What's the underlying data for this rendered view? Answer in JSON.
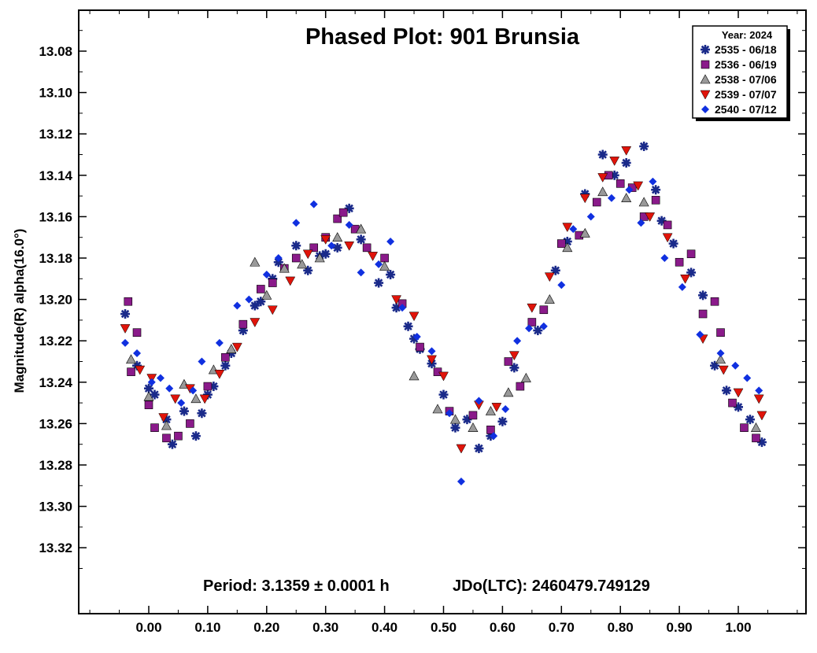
{
  "chart_data": {
    "type": "scatter",
    "title": "Phased Plot: 901 Brunsia",
    "xlabel": "",
    "ylabel": "Magnitude(R) alpha(16.0°)",
    "xlim": [
      -0.12,
      1.12
    ],
    "ylim": [
      13.34,
      13.06
    ],
    "y_inverted": true,
    "x_ticks": [
      "0.00",
      "0.10",
      "0.20",
      "0.30",
      "0.40",
      "0.50",
      "0.60",
      "0.70",
      "0.80",
      "0.90",
      "1.00"
    ],
    "y_ticks": [
      "13.08",
      "13.10",
      "13.12",
      "13.14",
      "13.16",
      "13.18",
      "13.20",
      "13.22",
      "13.24",
      "13.26",
      "13.28",
      "13.30",
      "13.32"
    ],
    "legend": {
      "title": "Year: 2024",
      "placement": "top-right"
    },
    "footer": {
      "period": "Period: 3.1359 ± 0.0001 h",
      "jd": "JDo(LTC): 2460479.749129"
    },
    "series": [
      {
        "name": "2535 - 06/18",
        "marker": "asterisk",
        "color": "#1a2a8a",
        "x": [
          -0.04,
          -0.02,
          0.0,
          0.01,
          0.03,
          0.04,
          0.06,
          0.08,
          0.09,
          0.1,
          0.11,
          0.13,
          0.14,
          0.16,
          0.18,
          0.19,
          0.21,
          0.22,
          0.25,
          0.27,
          0.29,
          0.3,
          0.32,
          0.34,
          0.36,
          0.39,
          0.41,
          0.42,
          0.44,
          0.45,
          0.46,
          0.48,
          0.5,
          0.52,
          0.54,
          0.56,
          0.58,
          0.6,
          0.96,
          0.98,
          1.0,
          1.02,
          1.04,
          0.62,
          0.66,
          0.69,
          0.71,
          0.74,
          0.77,
          0.79,
          0.81,
          0.84,
          0.86,
          0.87,
          0.89,
          0.92,
          0.94
        ],
        "y": [
          13.207,
          13.232,
          13.243,
          13.246,
          13.258,
          13.27,
          13.254,
          13.266,
          13.255,
          13.246,
          13.242,
          13.232,
          13.226,
          13.215,
          13.203,
          13.201,
          13.19,
          13.182,
          13.174,
          13.186,
          13.179,
          13.178,
          13.175,
          13.156,
          13.171,
          13.192,
          13.188,
          13.204,
          13.213,
          13.219,
          13.224,
          13.231,
          13.246,
          13.262,
          13.258,
          13.272,
          13.266,
          13.259,
          13.232,
          13.244,
          13.252,
          13.258,
          13.269,
          13.233,
          13.215,
          13.186,
          13.172,
          13.149,
          13.13,
          13.14,
          13.134,
          13.126,
          13.147,
          13.162,
          13.173,
          13.187,
          13.198
        ]
      },
      {
        "name": "2536 - 06/19",
        "marker": "square",
        "color": "#8a1a8a",
        "x": [
          -0.035,
          -0.03,
          -0.02,
          0.0,
          0.01,
          0.03,
          0.05,
          0.07,
          0.1,
          0.13,
          0.16,
          0.19,
          0.21,
          0.23,
          0.25,
          0.28,
          0.3,
          0.32,
          0.33,
          0.35,
          0.37,
          0.4,
          0.43,
          0.46,
          0.49,
          0.51,
          0.55,
          0.58,
          0.61,
          0.63,
          0.65,
          0.67,
          0.7,
          0.73,
          0.76,
          0.78,
          0.8,
          0.82,
          0.84,
          0.86,
          0.88,
          0.9,
          0.92,
          0.94,
          0.96,
          0.97,
          0.99,
          1.01,
          1.03
        ],
        "y": [
          13.201,
          13.235,
          13.216,
          13.251,
          13.262,
          13.267,
          13.266,
          13.26,
          13.242,
          13.228,
          13.212,
          13.195,
          13.192,
          13.185,
          13.18,
          13.175,
          13.17,
          13.161,
          13.158,
          13.166,
          13.175,
          13.18,
          13.202,
          13.223,
          13.235,
          13.254,
          13.256,
          13.263,
          13.23,
          13.242,
          13.211,
          13.205,
          13.173,
          13.169,
          13.153,
          13.14,
          13.144,
          13.146,
          13.16,
          13.152,
          13.164,
          13.182,
          13.178,
          13.207,
          13.201,
          13.216,
          13.25,
          13.262,
          13.267
        ]
      },
      {
        "name": "2538 - 07/06",
        "marker": "triangle-up",
        "color": "#999999",
        "x": [
          -0.03,
          0.0,
          0.03,
          0.06,
          0.08,
          0.11,
          0.14,
          0.18,
          0.2,
          0.23,
          0.26,
          0.29,
          0.32,
          0.36,
          0.4,
          0.45,
          0.49,
          0.52,
          0.55,
          0.58,
          0.61,
          0.64,
          0.68,
          0.71,
          0.74,
          0.77,
          0.81,
          0.84,
          0.97,
          1.03
        ],
        "y": [
          13.229,
          13.247,
          13.261,
          13.241,
          13.248,
          13.234,
          13.224,
          13.182,
          13.198,
          13.185,
          13.183,
          13.18,
          13.17,
          13.166,
          13.184,
          13.237,
          13.253,
          13.258,
          13.262,
          13.254,
          13.245,
          13.238,
          13.2,
          13.175,
          13.168,
          13.148,
          13.151,
          13.153,
          13.229,
          13.262
        ]
      },
      {
        "name": "2539 - 07/07",
        "marker": "triangle-down",
        "color": "#e0140a",
        "x": [
          -0.04,
          -0.015,
          0.005,
          0.025,
          0.045,
          0.07,
          0.095,
          0.12,
          0.15,
          0.18,
          0.21,
          0.24,
          0.27,
          0.3,
          0.34,
          0.38,
          0.42,
          0.45,
          0.48,
          0.5,
          0.53,
          0.56,
          0.59,
          0.62,
          0.65,
          0.68,
          0.71,
          0.74,
          0.77,
          0.79,
          0.81,
          0.83,
          0.85,
          0.88,
          0.91,
          0.94,
          0.975,
          1.0,
          1.035,
          1.04
        ],
        "y": [
          13.214,
          13.234,
          13.238,
          13.257,
          13.248,
          13.243,
          13.248,
          13.236,
          13.223,
          13.211,
          13.205,
          13.191,
          13.178,
          13.171,
          13.174,
          13.179,
          13.2,
          13.208,
          13.229,
          13.237,
          13.272,
          13.251,
          13.252,
          13.227,
          13.204,
          13.189,
          13.165,
          13.151,
          13.141,
          13.133,
          13.128,
          13.145,
          13.16,
          13.17,
          13.19,
          13.219,
          13.234,
          13.245,
          13.248,
          13.256
        ]
      },
      {
        "name": "2540 - 07/12",
        "marker": "diamond",
        "color": "#1030e0",
        "x": [
          -0.04,
          -0.02,
          0.005,
          0.02,
          0.035,
          0.055,
          0.075,
          0.09,
          0.12,
          0.15,
          0.17,
          0.2,
          0.22,
          0.25,
          0.28,
          0.31,
          0.34,
          0.36,
          0.39,
          0.41,
          0.43,
          0.455,
          0.48,
          0.51,
          0.53,
          0.56,
          0.585,
          0.605,
          0.625,
          0.645,
          0.67,
          0.7,
          0.72,
          0.75,
          0.785,
          0.815,
          0.835,
          0.855,
          0.875,
          0.905,
          0.935,
          0.97,
          0.995,
          1.015,
          1.035
        ],
        "y": [
          13.221,
          13.226,
          13.24,
          13.238,
          13.243,
          13.25,
          13.244,
          13.23,
          13.221,
          13.203,
          13.2,
          13.188,
          13.18,
          13.163,
          13.154,
          13.174,
          13.164,
          13.187,
          13.183,
          13.172,
          13.204,
          13.218,
          13.225,
          13.255,
          13.288,
          13.249,
          13.266,
          13.253,
          13.22,
          13.214,
          13.213,
          13.193,
          13.166,
          13.16,
          13.151,
          13.147,
          13.163,
          13.143,
          13.18,
          13.194,
          13.217,
          13.226,
          13.232,
          13.238,
          13.244
        ]
      }
    ]
  }
}
